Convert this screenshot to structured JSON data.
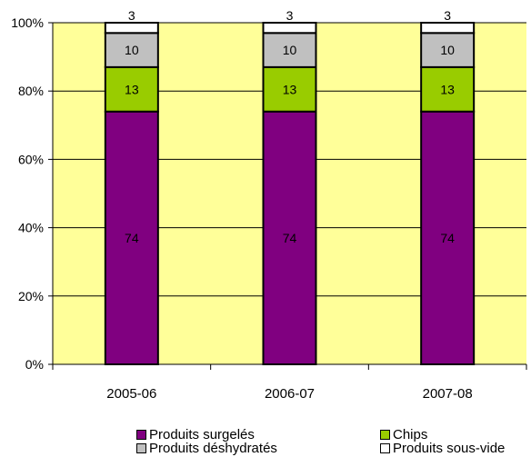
{
  "chart_data": {
    "type": "bar",
    "stacked": true,
    "percent": true,
    "categories": [
      "2005-06",
      "2006-07",
      "2007-08"
    ],
    "series": [
      {
        "name": "Produits surgelés",
        "values": [
          74,
          74,
          74
        ],
        "color": "#800080"
      },
      {
        "name": "Chips",
        "values": [
          13,
          13,
          13
        ],
        "color": "#99cc00"
      },
      {
        "name": "Produits déshydratés",
        "values": [
          10,
          10,
          10
        ],
        "color": "#c0c0c0"
      },
      {
        "name": "Produits sous-vide",
        "values": [
          3,
          3,
          3
        ],
        "color": "#ffffff"
      }
    ],
    "yticks": [
      "0%",
      "20%",
      "40%",
      "60%",
      "80%",
      "100%"
    ],
    "ylim": [
      0,
      100
    ],
    "plot_background": "#ffff99",
    "grid": true,
    "legend": "bottom"
  }
}
